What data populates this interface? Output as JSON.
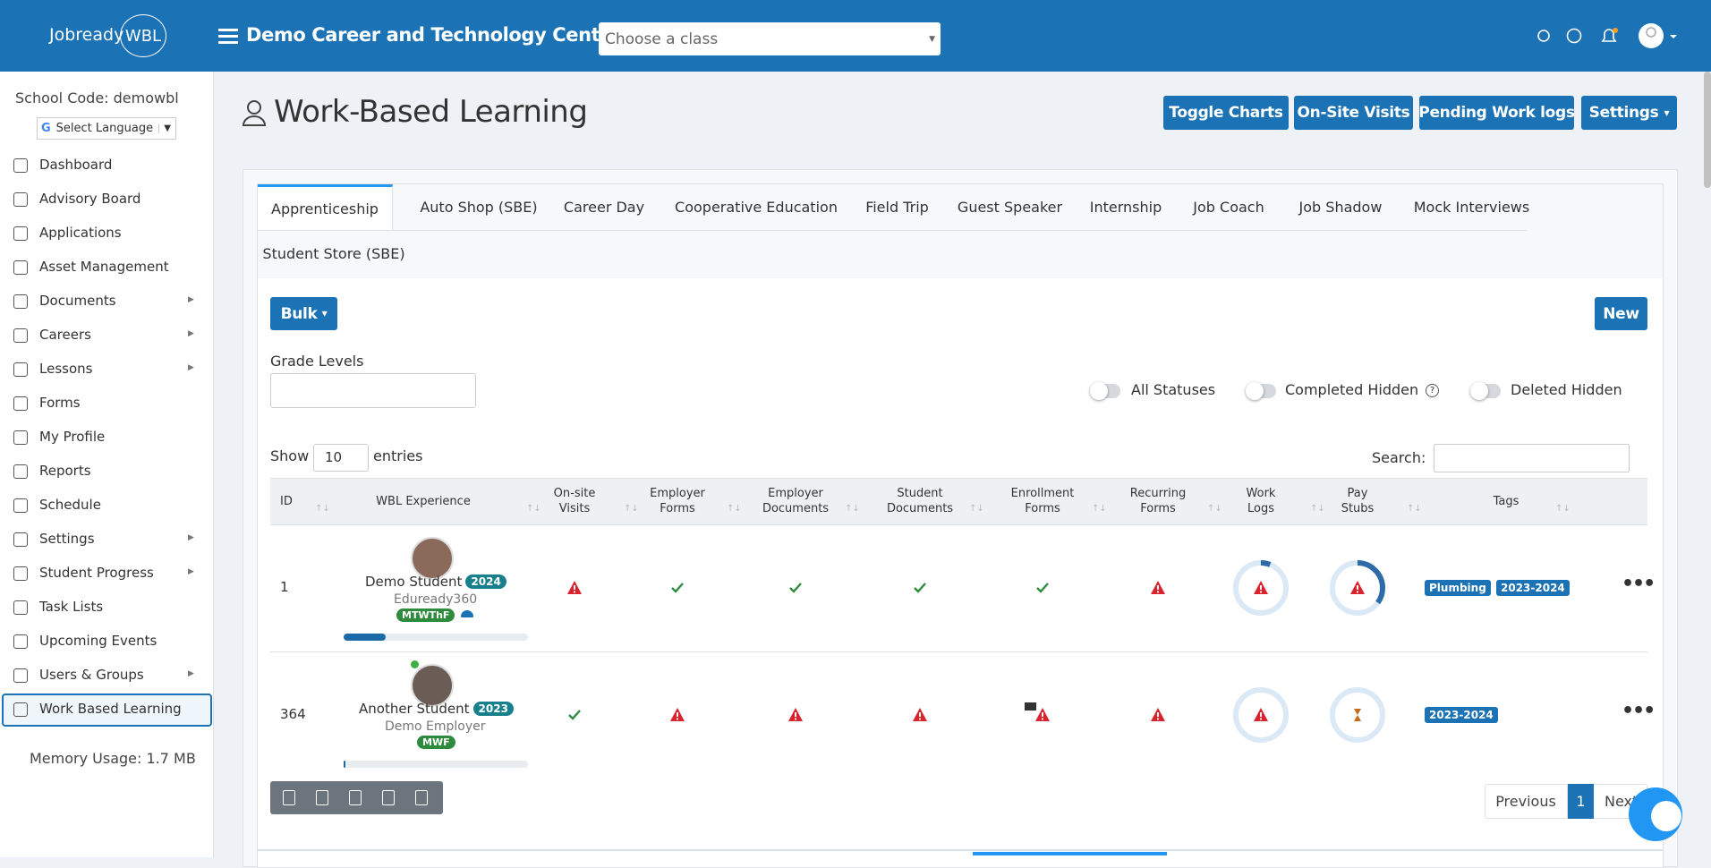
{
  "header": {
    "brand": "Jobready",
    "brand_badge": "WBL",
    "org": "Demo Career and Technology Center",
    "class_select": "Choose a class"
  },
  "sidebar": {
    "school_code": "School Code: demowbl",
    "language": "Select Language",
    "items": [
      {
        "label": "Dashboard",
        "submenu": false
      },
      {
        "label": "Advisory Board",
        "submenu": false
      },
      {
        "label": "Applications",
        "submenu": false
      },
      {
        "label": "Asset Management",
        "submenu": false
      },
      {
        "label": "Documents",
        "submenu": true
      },
      {
        "label": "Careers",
        "submenu": true
      },
      {
        "label": "Lessons",
        "submenu": true
      },
      {
        "label": "Forms",
        "submenu": false
      },
      {
        "label": "My Profile",
        "submenu": false
      },
      {
        "label": "Reports",
        "submenu": false
      },
      {
        "label": "Schedule",
        "submenu": false
      },
      {
        "label": "Settings",
        "submenu": true
      },
      {
        "label": "Student Progress",
        "submenu": true
      },
      {
        "label": "Task Lists",
        "submenu": false
      },
      {
        "label": "Upcoming Events",
        "submenu": false
      },
      {
        "label": "Users & Groups",
        "submenu": true
      },
      {
        "label": "Work Based Learning",
        "submenu": false
      }
    ],
    "active": 16,
    "memory": "Memory Usage: 1.7 MB"
  },
  "page": {
    "title": "Work-Based Learning",
    "buttons": [
      "Toggle Charts",
      "On-Site Visits",
      "Pending Work logs",
      "Settings"
    ]
  },
  "tabs": {
    "items": [
      "Apprenticeship",
      "Auto Shop (SBE)",
      "Career Day",
      "Cooperative Education",
      "Field Trip",
      "Guest Speaker",
      "Internship",
      "Job Coach",
      "Job Shadow",
      "Mock Interviews",
      "Student Store (SBE)"
    ],
    "active": 0
  },
  "controls": {
    "bulk": "Bulk",
    "new": "New",
    "grade_levels": "Grade Levels",
    "toggles": [
      "All Statuses",
      "Completed Hidden",
      "Deleted Hidden"
    ],
    "show": "Show",
    "entries_value": "10",
    "entries": "entries",
    "search": "Search:"
  },
  "table": {
    "columns": [
      "ID",
      "WBL Experience",
      "On-site Visits",
      "Employer Forms",
      "Employer Documents",
      "Student Documents",
      "Enrollment Forms",
      "Recurring Forms",
      "Work Logs",
      "Pay Stubs",
      "Tags"
    ],
    "rows": [
      {
        "id": "1",
        "name": "Demo Student",
        "year": "2024",
        "org": "Eduready360",
        "days": "MTWThF",
        "progress": 23,
        "cells": [
          "warn",
          "check",
          "check",
          "check",
          "check",
          "warn"
        ],
        "work_logs": 6,
        "pay_stubs": 35,
        "pay_icon": "warn",
        "tags": [
          "Plumbing",
          "2023-2024"
        ]
      },
      {
        "id": "364",
        "name": "Another Student",
        "year": "2023",
        "org": "Demo Employer",
        "days": "MWF",
        "progress": 1,
        "cells": [
          "check",
          "warn",
          "warn",
          "warn",
          "warn",
          "warn"
        ],
        "work_logs": 0,
        "pay_stubs": 0,
        "pay_icon": "hourglass",
        "tags": [
          "2023-2024"
        ]
      }
    ]
  },
  "pagination": {
    "previous": "Previous",
    "current": "1",
    "next": "Next"
  }
}
